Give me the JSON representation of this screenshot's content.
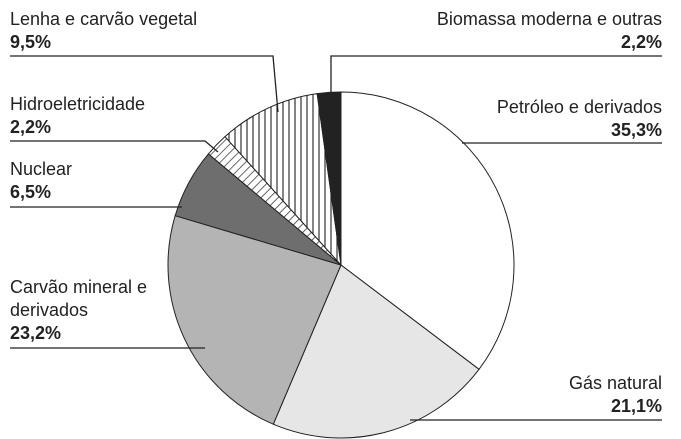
{
  "chart_data": {
    "type": "pie",
    "categories": [
      "Petróleo e derivados",
      "Gás natural",
      "Carvão mineral e derivados",
      "Nuclear",
      "Hidroeletricidade",
      "Lenha e carvão vegetal",
      "Biomassa moderna e outras"
    ],
    "values": [
      35.3,
      21.1,
      23.2,
      6.5,
      2.2,
      9.5,
      2.2
    ],
    "value_labels": [
      "35,3%",
      "21,1%",
      "23,2%",
      "6,5%",
      "2,2%",
      "9,5%",
      "2,2%"
    ],
    "colors": [
      "#ffffff",
      "#e6e6e6",
      "#b4b4b4",
      "#6e6e6e",
      "url(#diag)",
      "url(#vert)",
      "#222222"
    ]
  }
}
